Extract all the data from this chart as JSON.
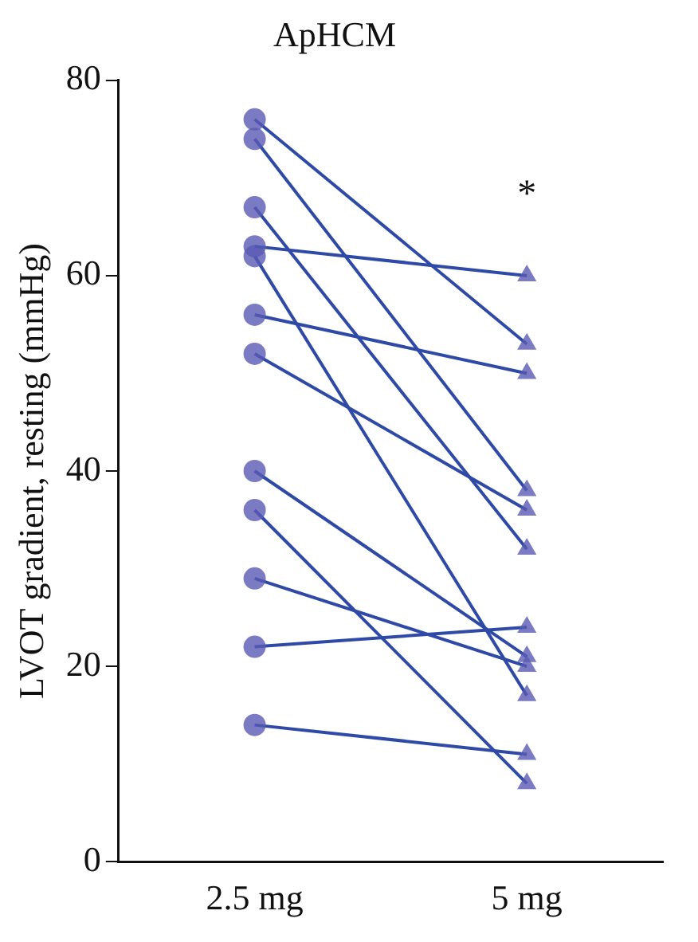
{
  "chart_data": {
    "type": "line",
    "title": "ApHCM",
    "ylabel": "LVOT gradient, resting (mmHg)",
    "categories": [
      "2.5 mg",
      "5 mg"
    ],
    "ylim": [
      0,
      80
    ],
    "yticks": [
      0,
      20,
      40,
      60,
      80
    ],
    "grid": false,
    "legend": false,
    "marker": [
      "circle",
      "triangle"
    ],
    "line_style": "solid",
    "series": [
      {
        "color": "#2e4aa6",
        "values": [
          76,
          53
        ]
      },
      {
        "color": "#2e4aa6",
        "values": [
          74,
          38
        ]
      },
      {
        "color": "#2e4aa6",
        "values": [
          67,
          32
        ]
      },
      {
        "color": "#2e4aa6",
        "values": [
          63,
          60
        ]
      },
      {
        "color": "#2e4aa6",
        "values": [
          62,
          17
        ]
      },
      {
        "color": "#2e4aa6",
        "values": [
          56,
          50
        ]
      },
      {
        "color": "#2e4aa6",
        "values": [
          52,
          36
        ]
      },
      {
        "color": "#2e4aa6",
        "values": [
          40,
          21
        ]
      },
      {
        "color": "#2e4aa6",
        "values": [
          36,
          8
        ]
      },
      {
        "color": "#2e4aa6",
        "values": [
          29,
          20
        ]
      },
      {
        "color": "#2e4aa6",
        "values": [
          22,
          24
        ]
      },
      {
        "color": "#2e4aa6",
        "values": [
          14,
          11
        ]
      }
    ],
    "annotations": [
      "*"
    ]
  }
}
